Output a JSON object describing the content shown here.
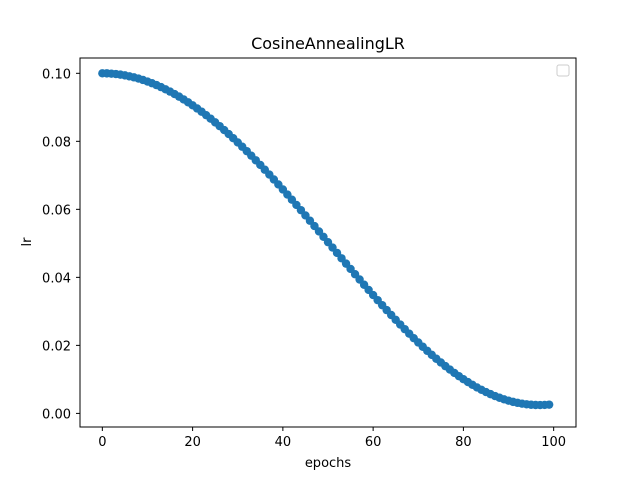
{
  "chart_data": {
    "type": "scatter",
    "title": "CosineAnnealingLR",
    "xlabel": "epochs",
    "ylabel": "lr",
    "xlim": [
      -4.95,
      104.95
    ],
    "ylim": [
      -0.004,
      0.1045
    ],
    "xticks": [
      0,
      20,
      40,
      60,
      80,
      100
    ],
    "xtick_labels": [
      "0",
      "20",
      "40",
      "60",
      "80",
      "100"
    ],
    "yticks": [
      0.0,
      0.02,
      0.04,
      0.06,
      0.08,
      0.1
    ],
    "ytick_labels": [
      "0.00",
      "0.02",
      "0.04",
      "0.06",
      "0.08",
      "0.10"
    ],
    "grid": false,
    "legend": {
      "placement": "top-right",
      "entries": []
    },
    "series": [
      {
        "color": "#1f77b4",
        "marker": "circle",
        "points": [
          [
            0,
            0.1
          ],
          [
            1,
            0.09998
          ],
          [
            2,
            0.0999
          ],
          [
            3,
            0.09978
          ],
          [
            4,
            0.09961
          ],
          [
            5,
            0.09939
          ],
          [
            6,
            0.09912
          ],
          [
            7,
            0.09881
          ],
          [
            8,
            0.09845
          ],
          [
            9,
            0.09804
          ],
          [
            10,
            0.09758
          ],
          [
            11,
            0.09708
          ],
          [
            12,
            0.09653
          ],
          [
            13,
            0.09594
          ],
          [
            14,
            0.0953
          ],
          [
            15,
            0.09462
          ],
          [
            16,
            0.0939
          ],
          [
            17,
            0.09314
          ],
          [
            18,
            0.09233
          ],
          [
            19,
            0.09148
          ],
          [
            20,
            0.09059
          ],
          [
            21,
            0.08966
          ],
          [
            22,
            0.0887
          ],
          [
            23,
            0.08769
          ],
          [
            24,
            0.08665
          ],
          [
            25,
            0.08557
          ],
          [
            26,
            0.08446
          ],
          [
            27,
            0.08331
          ],
          [
            28,
            0.08213
          ],
          [
            29,
            0.08092
          ],
          [
            30,
            0.07968
          ],
          [
            31,
            0.07841
          ],
          [
            32,
            0.07711
          ],
          [
            33,
            0.07578
          ],
          [
            34,
            0.07443
          ],
          [
            35,
            0.07305
          ],
          [
            36,
            0.07165
          ],
          [
            37,
            0.07023
          ],
          [
            38,
            0.06878
          ],
          [
            39,
            0.06732
          ],
          [
            40,
            0.06584
          ],
          [
            41,
            0.06434
          ],
          [
            42,
            0.06283
          ],
          [
            43,
            0.0613
          ],
          [
            44,
            0.05976
          ],
          [
            45,
            0.05821
          ],
          [
            46,
            0.05665
          ],
          [
            47,
            0.05508
          ],
          [
            48,
            0.05351
          ],
          [
            49,
            0.05193
          ],
          [
            50,
            0.05035
          ],
          [
            51,
            0.04877
          ],
          [
            52,
            0.04719
          ],
          [
            53,
            0.04561
          ],
          [
            54,
            0.04404
          ],
          [
            55,
            0.04247
          ],
          [
            56,
            0.04092
          ],
          [
            57,
            0.03937
          ],
          [
            58,
            0.03783
          ],
          [
            59,
            0.03631
          ],
          [
            60,
            0.0348
          ],
          [
            61,
            0.0333
          ],
          [
            62,
            0.03183
          ],
          [
            63,
            0.03037
          ],
          [
            64,
            0.02893
          ],
          [
            65,
            0.02752
          ],
          [
            66,
            0.02613
          ],
          [
            67,
            0.02477
          ],
          [
            68,
            0.02343
          ],
          [
            69,
            0.02212
          ],
          [
            70,
            0.02085
          ],
          [
            71,
            0.0196
          ],
          [
            72,
            0.01839
          ],
          [
            73,
            0.01721
          ],
          [
            74,
            0.01607
          ],
          [
            75,
            0.01497
          ],
          [
            76,
            0.0139
          ],
          [
            77,
            0.01288
          ],
          [
            78,
            0.01189
          ],
          [
            79,
            0.01095
          ],
          [
            80,
            0.01006
          ],
          [
            81,
            0.00921
          ],
          [
            82,
            0.0084
          ],
          [
            83,
            0.00764
          ],
          [
            84,
            0.00693
          ],
          [
            85,
            0.00628
          ],
          [
            86,
            0.00567
          ],
          [
            87,
            0.00511
          ],
          [
            88,
            0.0046
          ],
          [
            89,
            0.00414
          ],
          [
            90,
            0.00374
          ],
          [
            91,
            0.00339
          ],
          [
            92,
            0.0031
          ],
          [
            93,
            0.00286
          ],
          [
            94,
            0.00267
          ],
          [
            95,
            0.00254
          ],
          [
            96,
            0.00247
          ],
          [
            97,
            0.00245
          ],
          [
            98,
            0.00248
          ],
          [
            99,
            0.00257
          ]
        ]
      }
    ]
  }
}
